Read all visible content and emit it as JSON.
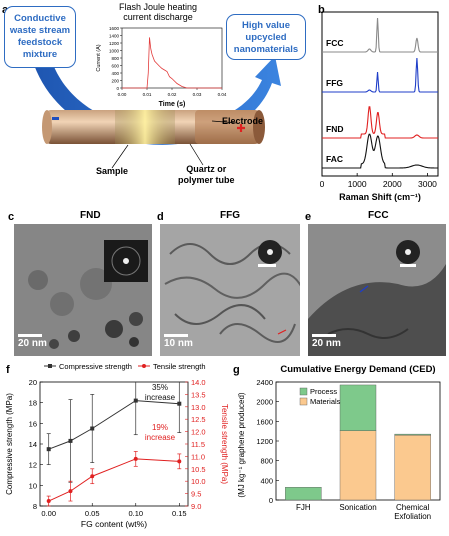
{
  "panel_labels": {
    "a": "a",
    "b": "b",
    "c": "c",
    "d": "d",
    "e": "e",
    "f": "f",
    "g": "g"
  },
  "panel_a": {
    "box_left": "Conductive waste stream feedstock mixture",
    "box_left_lines": [
      "Conductive",
      "waste stream",
      "feedstock",
      "mixture"
    ],
    "box_right_lines": [
      "High value",
      "upcycled",
      "nanomaterials"
    ],
    "inset_title_lines": [
      "Flash Joule heating",
      "current discharge"
    ],
    "inset_ylabel": "Current (A)",
    "inset_xlabel": "Time (s)",
    "inset_yticks": [
      "0",
      "200",
      "400",
      "600",
      "800",
      "1000",
      "1200",
      "1400",
      "1600"
    ],
    "inset_xticks": [
      "0.00",
      "0.01",
      "0.02",
      "0.03",
      "0.04"
    ],
    "label_electrode": "Electrode",
    "label_sample": "Sample",
    "label_tube_lines": [
      "Quartz or",
      "polymer tube"
    ],
    "colors": {
      "arrow": "#2e6cc2",
      "box_border": "#2e6cc2",
      "trace": "#e23b3b"
    }
  },
  "panel_b": {
    "labels": [
      "FCC",
      "FFG",
      "FND",
      "FAC"
    ],
    "colors": [
      "#8a8a8a",
      "#1f3ec8",
      "#e02020",
      "#111111"
    ],
    "xticks": [
      "0",
      "1000",
      "2000",
      "3000"
    ],
    "xlabel": "Raman Shift (cm⁻¹)"
  },
  "panel_c": {
    "title": "FND",
    "scale": "20 nm"
  },
  "panel_d": {
    "title": "FFG",
    "scale": "10 nm"
  },
  "panel_e": {
    "title": "FCC",
    "scale": "20 nm"
  },
  "chart_data": [
    {
      "type": "line",
      "x": [
        0.0,
        0.025,
        0.05,
        0.1,
        0.15
      ],
      "xticks": [
        "0.00",
        "0.05",
        "0.10",
        "0.15"
      ],
      "xlabel": "FG content (wt%)",
      "ylabel_left": "Compressive strength (MPa)",
      "ylabel_right": "Tensile strength (MPa)",
      "ylim_left": [
        8,
        20
      ],
      "yticks_left": [
        "8",
        "10",
        "12",
        "14",
        "16",
        "18",
        "20"
      ],
      "ylim_right": [
        9.0,
        14.0
      ],
      "yticks_right": [
        "9.0",
        "9.5",
        "10.0",
        "10.5",
        "11.0",
        "11.5",
        "12.0",
        "12.5",
        "13.0",
        "13.5",
        "14.0"
      ],
      "legend": [
        "Compressive strength",
        "Tensile strength"
      ],
      "series": [
        {
          "name": "Compressive strength",
          "color": "#333333",
          "values": [
            13.5,
            14.3,
            15.5,
            18.2,
            17.9
          ],
          "errors": [
            1.5,
            4.0,
            3.3,
            3.3,
            2.8
          ]
        },
        {
          "name": "Tensile strength",
          "color": "#e02020",
          "values": [
            9.2,
            9.6,
            10.2,
            10.9,
            10.8
          ],
          "errors": [
            0.2,
            0.4,
            0.3,
            0.3,
            0.3
          ]
        }
      ],
      "annotations": [
        {
          "lines": [
            "35%",
            "increase"
          ],
          "color": "#111111"
        },
        {
          "lines": [
            "19%",
            "increase"
          ],
          "color": "#e02020"
        }
      ]
    },
    {
      "type": "bar",
      "title": "Cumulative Energy Demand (CED)",
      "categories": [
        "FJH",
        "Sonication",
        "Chemical Exfoliation"
      ],
      "category_lines": [
        [
          "FJH"
        ],
        [
          "Sonication"
        ],
        [
          "Chemical",
          "Exfoliation"
        ]
      ],
      "ylabel": "(MJ kg⁻¹ graphene produced)",
      "ylim": [
        0,
        2400
      ],
      "yticks": [
        "0",
        "400",
        "800",
        "1200",
        "1600",
        "2000",
        "2400"
      ],
      "series": [
        {
          "name": "Materials",
          "color": "#fbc98f",
          "values": [
            0,
            1410,
            1320
          ]
        },
        {
          "name": "Process",
          "color": "#7ec98b",
          "values": [
            260,
            930,
            20
          ]
        }
      ],
      "legend": [
        "Process",
        "Materials"
      ]
    }
  ]
}
